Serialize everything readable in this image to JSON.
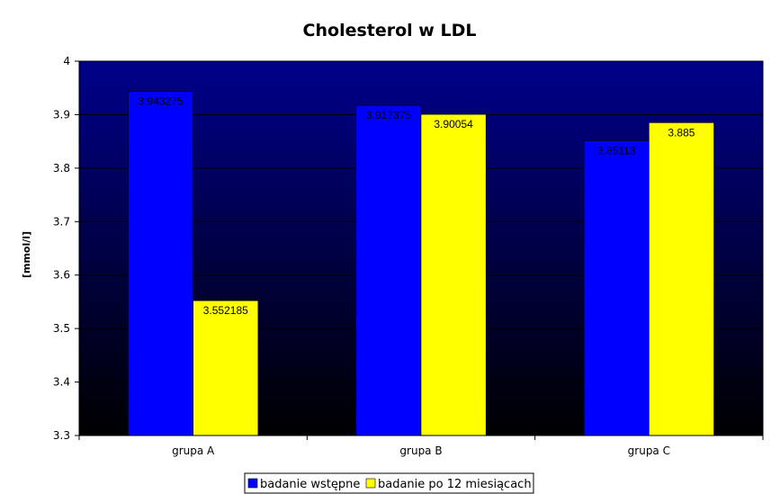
{
  "chart_data": {
    "type": "bar",
    "title": "Cholesterol w LDL",
    "xlabel": "",
    "ylabel": "[mmol/l]",
    "categories": [
      "grupa A",
      "grupa B",
      "grupa C"
    ],
    "ylim": [
      3.3,
      4.0
    ],
    "yticks": [
      "3.3",
      "3.4",
      "3.5",
      "3.6",
      "3.7",
      "3.8",
      "3.9",
      "4"
    ],
    "grid": true,
    "legend_position": "bottom",
    "plot_background": "gradient navy to black",
    "series": [
      {
        "name": "badanie wstępne",
        "color": "#0000ff",
        "values": [
          3.943275,
          3.917375,
          3.85113
        ],
        "labels": [
          "3.943275",
          "3.917375",
          "3.85113"
        ]
      },
      {
        "name": "badanie po 12 miesiącach",
        "color": "#ffff00",
        "values": [
          3.552185,
          3.90054,
          3.885
        ],
        "labels": [
          "3.552185",
          "3.90054",
          "3.885"
        ]
      }
    ]
  }
}
